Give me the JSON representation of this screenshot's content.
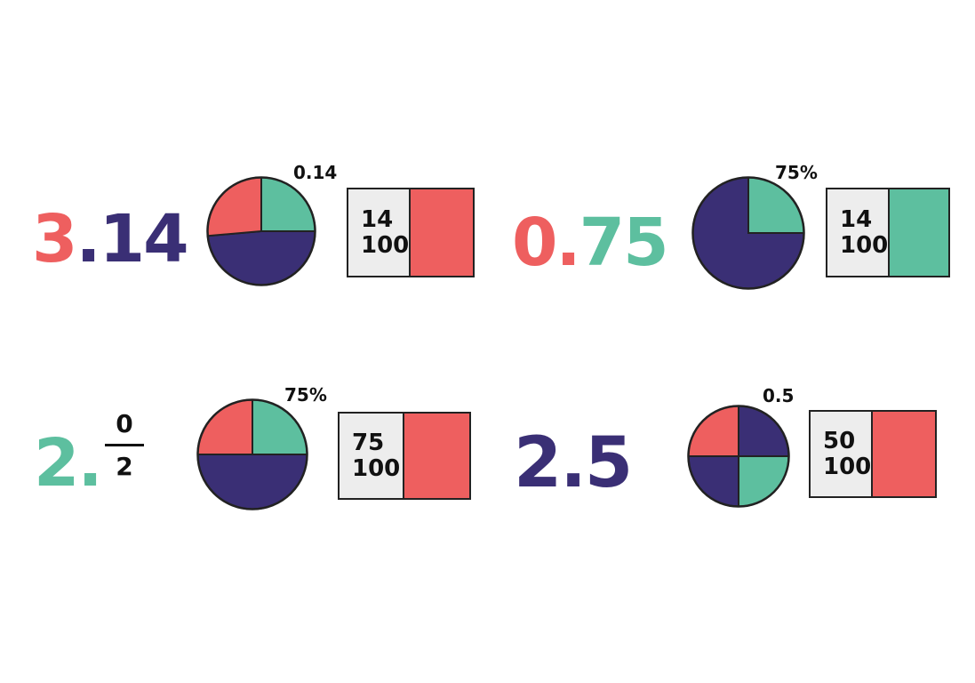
{
  "colors": {
    "coral": "#ee5f5f",
    "navy": "#3a2f75",
    "teal": "#5dbf9f",
    "card_bg": "#ededed",
    "outline": "#222222"
  },
  "items": [
    {
      "number_parts": [
        {
          "text": "3",
          "color": "coral"
        },
        {
          "text": ".14",
          "color": "navy"
        }
      ],
      "pie_label": "0.14",
      "pie_slices": [
        {
          "from": 0,
          "to": 90,
          "color": "teal"
        },
        {
          "from": 90,
          "to": 265,
          "color": "navy"
        },
        {
          "from": 265,
          "to": 360,
          "color": "coral"
        }
      ],
      "card": {
        "top": "14",
        "bottom": "100",
        "swatch": "coral"
      }
    },
    {
      "number_parts": [
        {
          "text": "0",
          "color": "coral"
        },
        {
          "text": ".",
          "color": "coral"
        },
        {
          "text": "75",
          "color": "teal"
        }
      ],
      "pie_label": "75%",
      "pie_slices": [
        {
          "from": 0,
          "to": 90,
          "color": "teal"
        },
        {
          "from": 90,
          "to": 360,
          "color": "navy"
        }
      ],
      "card": {
        "top": "14",
        "bottom": "100",
        "swatch": "teal"
      }
    },
    {
      "number_parts": [
        {
          "text": "2.",
          "color": "teal"
        }
      ],
      "fraction": {
        "numerator": "0",
        "denominator": "2"
      },
      "pie_label": "75%",
      "pie_slices": [
        {
          "from": 0,
          "to": 90,
          "color": "teal"
        },
        {
          "from": 90,
          "to": 270,
          "color": "navy"
        },
        {
          "from": 270,
          "to": 360,
          "color": "coral"
        }
      ],
      "card": {
        "top": "75",
        "bottom": "100",
        "swatch": "coral"
      }
    },
    {
      "number_parts": [
        {
          "text": "2.5",
          "color": "navy"
        }
      ],
      "pie_label": "0.5",
      "pie_slices": [
        {
          "from": 0,
          "to": 90,
          "color": "navy"
        },
        {
          "from": 90,
          "to": 180,
          "color": "teal"
        },
        {
          "from": 180,
          "to": 270,
          "color": "navy"
        },
        {
          "from": 270,
          "to": 360,
          "color": "coral"
        }
      ],
      "card": {
        "top": "50",
        "bottom": "100",
        "swatch": "coral"
      }
    }
  ]
}
